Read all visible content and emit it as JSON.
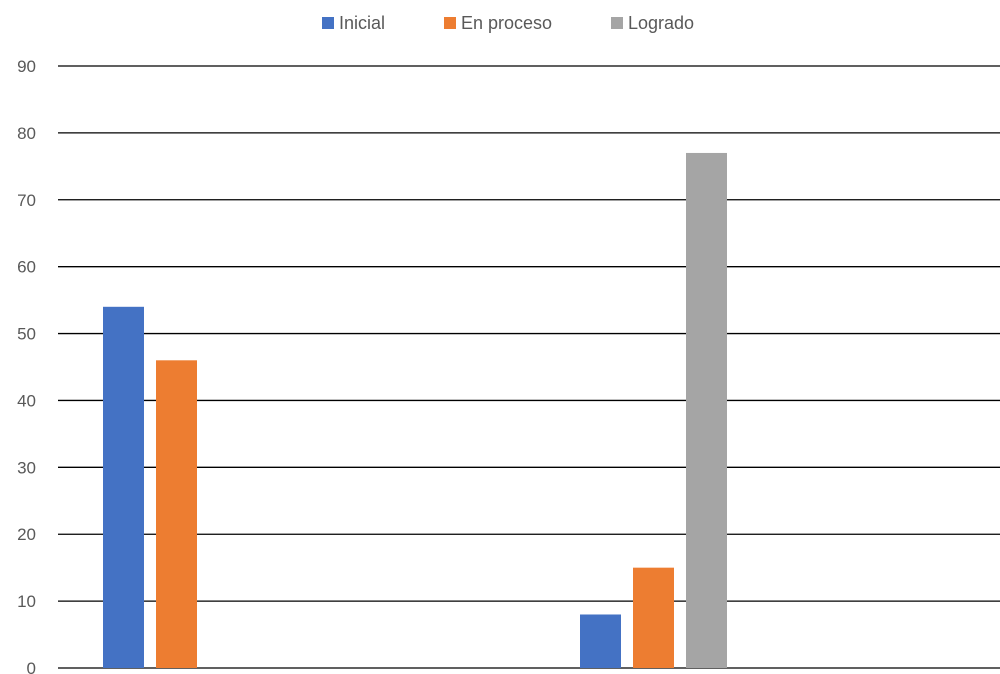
{
  "chart_data": {
    "type": "bar",
    "title": "",
    "xlabel": "",
    "ylabel": "",
    "categories": [
      "",
      ""
    ],
    "series": [
      {
        "name": "Inicial",
        "color": "#4472c4",
        "values": [
          54,
          8
        ]
      },
      {
        "name": "En proceso",
        "color": "#ed7d31",
        "values": [
          46,
          15
        ]
      },
      {
        "name": "Logrado",
        "color": "#a5a5a5",
        "values": [
          0,
          77
        ]
      }
    ],
    "ylim": [
      0,
      90
    ],
    "yticks": [
      0,
      10,
      20,
      30,
      40,
      50,
      60,
      70,
      80,
      90
    ],
    "grid": true,
    "legend_position": "top-center",
    "gridline_color": "#000000"
  }
}
